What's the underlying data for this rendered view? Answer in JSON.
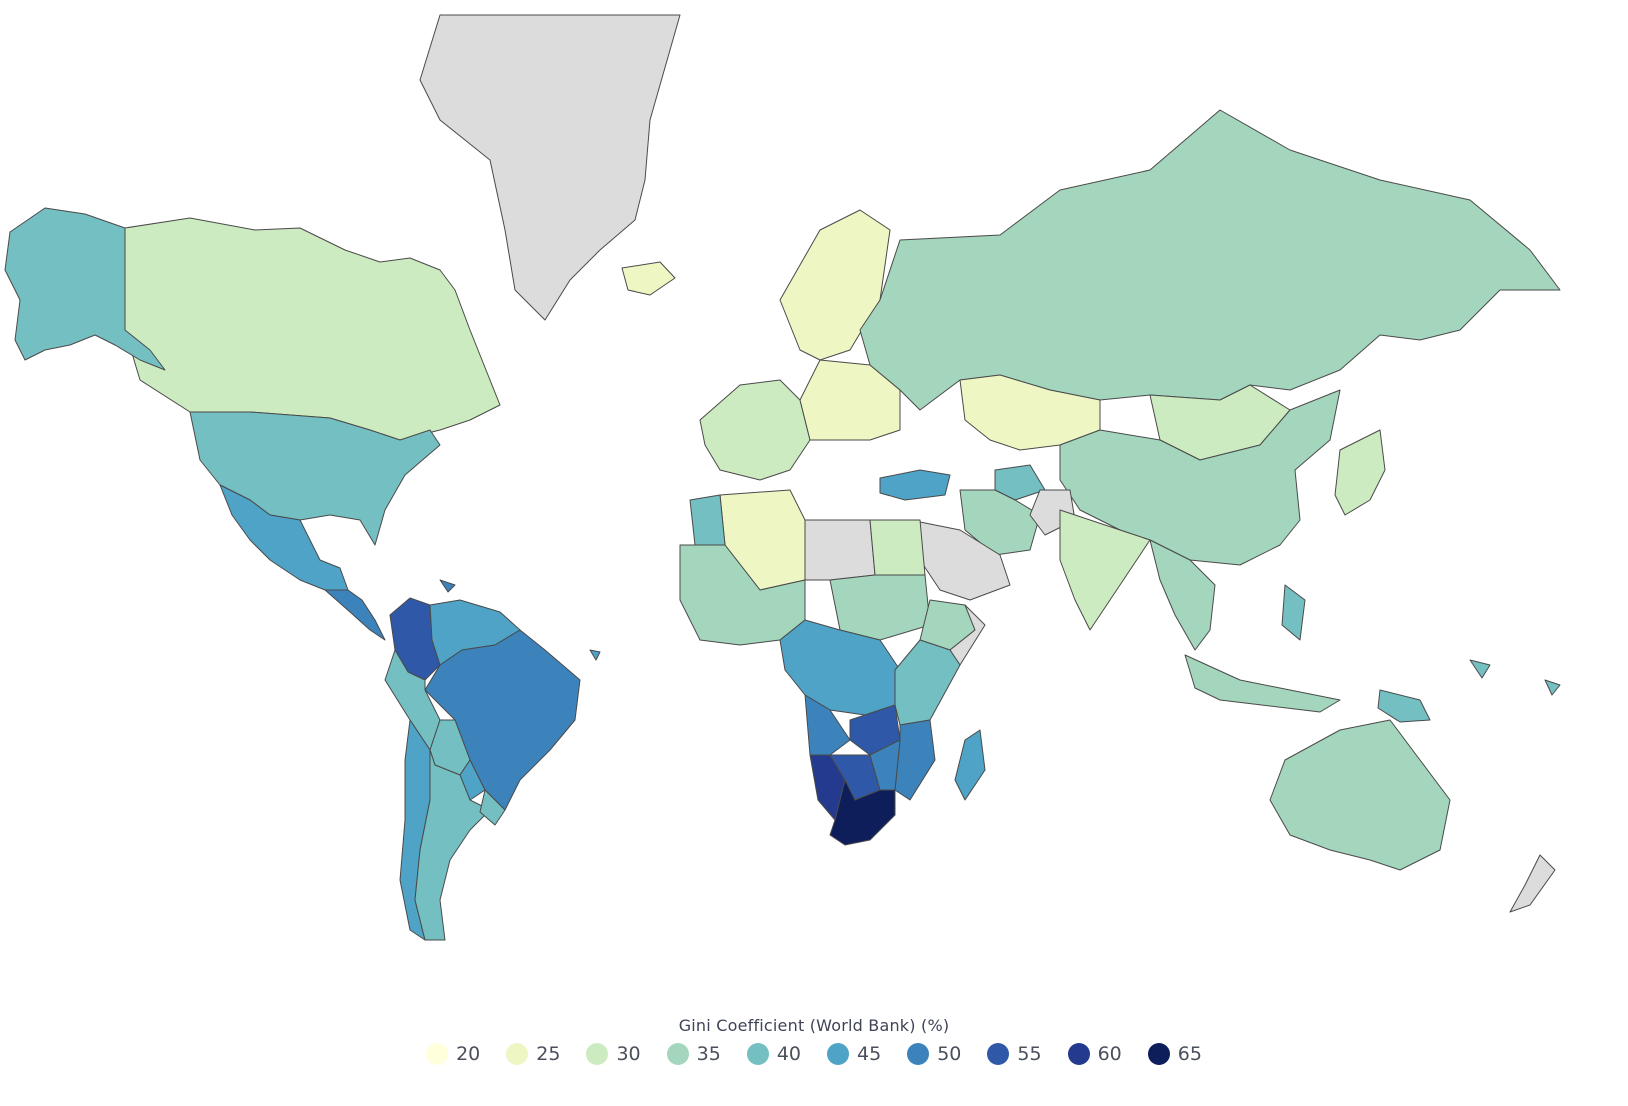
{
  "legend": {
    "title": "Gini Coefficient (World Bank) (%)",
    "bins": [
      {
        "label": "20",
        "color": "#ffffdc"
      },
      {
        "label": "25",
        "color": "#eef6c3"
      },
      {
        "label": "30",
        "color": "#cdebc0"
      },
      {
        "label": "35",
        "color": "#a3d6bd"
      },
      {
        "label": "40",
        "color": "#74bfc2"
      },
      {
        "label": "45",
        "color": "#4ea3c7"
      },
      {
        "label": "50",
        "color": "#3c83bc"
      },
      {
        "label": "55",
        "color": "#2f59a8"
      },
      {
        "label": "60",
        "color": "#233a8f"
      },
      {
        "label": "65",
        "color": "#0e1e5b"
      }
    ],
    "no_data_color": "#dcdcdc"
  },
  "chart_data": {
    "type": "choropleth",
    "title": "",
    "metric": "Gini Coefficient (World Bank) (%)",
    "regions": [
      {
        "name": "Canada",
        "value": 30
      },
      {
        "name": "Alaska",
        "value": 40
      },
      {
        "name": "United States",
        "value": 40
      },
      {
        "name": "Mexico",
        "value": 45
      },
      {
        "name": "Central America",
        "value": 50
      },
      {
        "name": "Colombia",
        "value": 55
      },
      {
        "name": "Venezuela / Guianas",
        "value": 45
      },
      {
        "name": "Brazil",
        "value": 50
      },
      {
        "name": "Peru",
        "value": 40
      },
      {
        "name": "Bolivia",
        "value": 40
      },
      {
        "name": "Paraguay",
        "value": 45
      },
      {
        "name": "Chile",
        "value": 45
      },
      {
        "name": "Argentina",
        "value": 40
      },
      {
        "name": "Uruguay",
        "value": 40
      },
      {
        "name": "Greenland",
        "value": null
      },
      {
        "name": "Iceland",
        "value": 25
      },
      {
        "name": "Scandinavia",
        "value": 25
      },
      {
        "name": "Western Europe",
        "value": 30
      },
      {
        "name": "Eastern Europe",
        "value": 25
      },
      {
        "name": "Russia",
        "value": 35
      },
      {
        "name": "Kazakhstan",
        "value": 25
      },
      {
        "name": "Mongolia",
        "value": 30
      },
      {
        "name": "China",
        "value": 35
      },
      {
        "name": "Japan",
        "value": 30
      },
      {
        "name": "Turkey",
        "value": 45
      },
      {
        "name": "Turkmenistan",
        "value": 40
      },
      {
        "name": "Iran",
        "value": 35
      },
      {
        "name": "Afghanistan",
        "value": null
      },
      {
        "name": "Arabian Peninsula",
        "value": null
      },
      {
        "name": "India",
        "value": 30
      },
      {
        "name": "Southeast Asia",
        "value": 35
      },
      {
        "name": "Indonesia",
        "value": 35
      },
      {
        "name": "Philippines",
        "value": 40
      },
      {
        "name": "Papua New Guinea",
        "value": 40
      },
      {
        "name": "Australia",
        "value": 35
      },
      {
        "name": "New Zealand",
        "value": null
      },
      {
        "name": "Algeria",
        "value": 25
      },
      {
        "name": "Libya",
        "value": null
      },
      {
        "name": "Egypt",
        "value": 30
      },
      {
        "name": "Morocco",
        "value": 40
      },
      {
        "name": "West Africa",
        "value": 35
      },
      {
        "name": "Sudan",
        "value": 35
      },
      {
        "name": "Ethiopia",
        "value": 35
      },
      {
        "name": "Somalia",
        "value": null
      },
      {
        "name": "Central Africa",
        "value": 45
      },
      {
        "name": "Kenya / Tanzania",
        "value": 40
      },
      {
        "name": "Angola",
        "value": 50
      },
      {
        "name": "Zambia",
        "value": 55
      },
      {
        "name": "Mozambique",
        "value": 50
      },
      {
        "name": "Namibia",
        "value": 60
      },
      {
        "name": "Botswana",
        "value": 55
      },
      {
        "name": "Zimbabwe",
        "value": 50
      },
      {
        "name": "South Africa",
        "value": 65
      },
      {
        "name": "Madagascar",
        "value": 45
      }
    ]
  }
}
